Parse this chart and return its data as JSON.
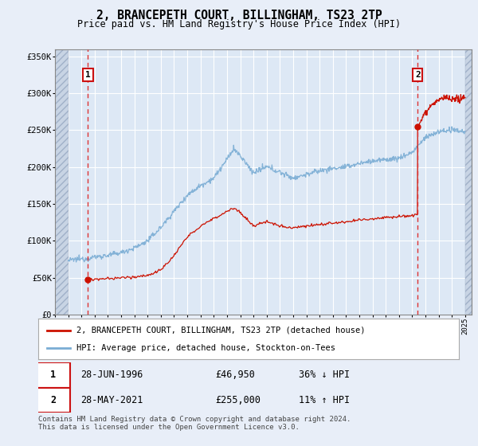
{
  "title": "2, BRANCEPETH COURT, BILLINGHAM, TS23 2TP",
  "subtitle": "Price paid vs. HM Land Registry's House Price Index (HPI)",
  "ylim": [
    0,
    360000
  ],
  "yticks": [
    0,
    50000,
    100000,
    150000,
    200000,
    250000,
    300000,
    350000
  ],
  "ytick_labels": [
    "£0",
    "£50K",
    "£100K",
    "£150K",
    "£200K",
    "£250K",
    "£300K",
    "£350K"
  ],
  "xlim_start": 1994.0,
  "xlim_end": 2025.5,
  "xtick_years": [
    1994,
    1995,
    1996,
    1997,
    1998,
    1999,
    2000,
    2001,
    2002,
    2003,
    2004,
    2005,
    2006,
    2007,
    2008,
    2009,
    2010,
    2011,
    2012,
    2013,
    2014,
    2015,
    2016,
    2017,
    2018,
    2019,
    2020,
    2021,
    2022,
    2023,
    2024,
    2025
  ],
  "hpi_color": "#7aadd4",
  "property_color": "#cc1100",
  "sale1_date": 1996.49,
  "sale1_price": 46950,
  "sale2_date": 2021.41,
  "sale2_price": 255000,
  "legend_property": "2, BRANCEPETH COURT, BILLINGHAM, TS23 2TP (detached house)",
  "legend_hpi": "HPI: Average price, detached house, Stockton-on-Tees",
  "table_row1": [
    "1",
    "28-JUN-1996",
    "£46,950",
    "36% ↓ HPI"
  ],
  "table_row2": [
    "2",
    "28-MAY-2021",
    "£255,000",
    "11% ↑ HPI"
  ],
  "footnote": "Contains HM Land Registry data © Crown copyright and database right 2024.\nThis data is licensed under the Open Government Licence v3.0.",
  "bg_color": "#e8eef8",
  "plot_bg_color": "#dde8f5",
  "grid_color": "#ffffff",
  "hpi_start_year": 1995.0,
  "hpi_end_year": 2025.0,
  "prop_start_year": 1996.49,
  "prop_end_year": 2025.0
}
